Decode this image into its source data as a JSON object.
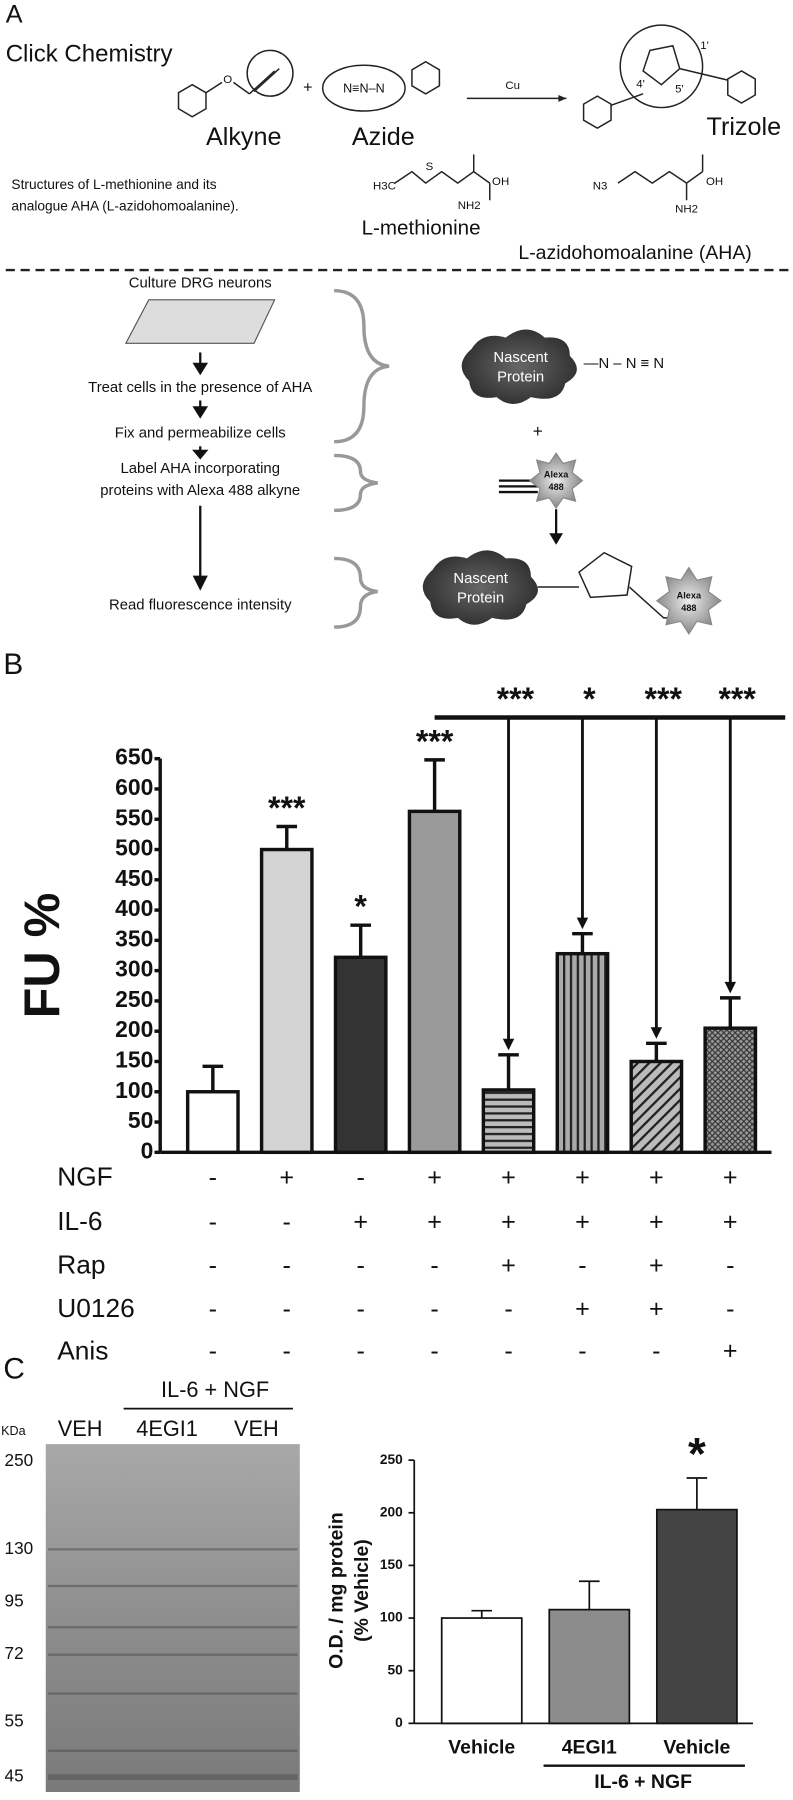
{
  "panel_a": {
    "label": "A",
    "title": "Click Chemistry",
    "alkyne": "Alkyne",
    "azide": "Azide",
    "catalyst": "Cu",
    "product": "Trizole",
    "description": [
      "Structures of L-methionine and its",
      "analogue AHA (L-azidohomoalanine)."
    ],
    "methionine": "L-methionine",
    "aha": "L-azidohomoalanine (AHA)",
    "atoms": {
      "oxygen": "O",
      "hydroxyl_1": "OH",
      "hydroxyl_2": "OH",
      "amine_1": "NH2",
      "amine_2": "NH2",
      "sulfur": "S",
      "methyl": "H3C",
      "azido": "N3",
      "pos_1": "1'",
      "pos_4": "4'",
      "pos_5": "5'"
    }
  },
  "workflow": {
    "steps": [
      "Culture DRG neurons",
      "Treat cells in the presence of AHA",
      "Fix and permeabilize cells",
      [
        "Label AHA incorporating",
        "proteins with Alexa 488 alkyne"
      ],
      "Read fluorescence intensity"
    ],
    "nascent_protein": [
      "Nascent",
      "Protein"
    ],
    "alexa": [
      "Alexa",
      "488"
    ],
    "plus": "+"
  },
  "chart_data": [
    {
      "type": "bar",
      "panel_label": "B",
      "ylabel": "FU %",
      "ylim": [
        0,
        650
      ],
      "yticks": [
        0,
        50,
        100,
        150,
        200,
        250,
        300,
        350,
        400,
        450,
        500,
        550,
        600,
        650
      ],
      "values": [
        100,
        500,
        322,
        563,
        103,
        328,
        150,
        205
      ],
      "errors": [
        42,
        38,
        53,
        85,
        58,
        33,
        30,
        50
      ],
      "significance": [
        null,
        "***",
        "*",
        "***",
        "***",
        "*",
        "***",
        "***"
      ],
      "colors": [
        "#ffffff",
        "#d4d4d4",
        "#333333",
        "#9a9a9a",
        "url(#hstripe)",
        "url(#vstripe)",
        "url(#dstripe)",
        "url(#xhatch)"
      ],
      "treatments": [
        {
          "name": "NGF",
          "signs": [
            "-",
            "+",
            "-",
            "+",
            "+",
            "+",
            "+",
            "+"
          ]
        },
        {
          "name": "IL-6",
          "signs": [
            "-",
            "-",
            "+",
            "+",
            "+",
            "+",
            "+",
            "+"
          ]
        },
        {
          "name": "Rap",
          "signs": [
            "-",
            "-",
            "-",
            "-",
            "+",
            "-",
            "+",
            "-"
          ]
        },
        {
          "name": "U0126",
          "signs": [
            "-",
            "-",
            "-",
            "-",
            "-",
            "+",
            "+",
            "-"
          ]
        },
        {
          "name": "Anis",
          "signs": [
            "-",
            "-",
            "-",
            "-",
            "-",
            "-",
            "-",
            "+"
          ]
        }
      ]
    },
    {
      "type": "bar",
      "panel_label": "C",
      "ylabel": [
        "O.D. / mg protein",
        "(% Vehicle)"
      ],
      "ylim": [
        0,
        250
      ],
      "yticks": [
        0,
        50,
        100,
        150,
        200,
        250
      ],
      "categories": [
        "Vehicle",
        "4EGI1",
        "Vehicle"
      ],
      "group_label": "IL-6 + NGF",
      "values": [
        100,
        108,
        203
      ],
      "errors": [
        7,
        27,
        30
      ],
      "significance": [
        null,
        null,
        "*"
      ],
      "colors": [
        "#ffffff",
        "#8c8c8c",
        "#444444"
      ],
      "blot": {
        "lanes": [
          "VEH",
          "4EGI1",
          "VEH"
        ],
        "group_label": "IL-6 + NGF",
        "unit": "KDa",
        "markers": [
          250,
          130,
          95,
          72,
          55,
          45
        ]
      }
    }
  ]
}
